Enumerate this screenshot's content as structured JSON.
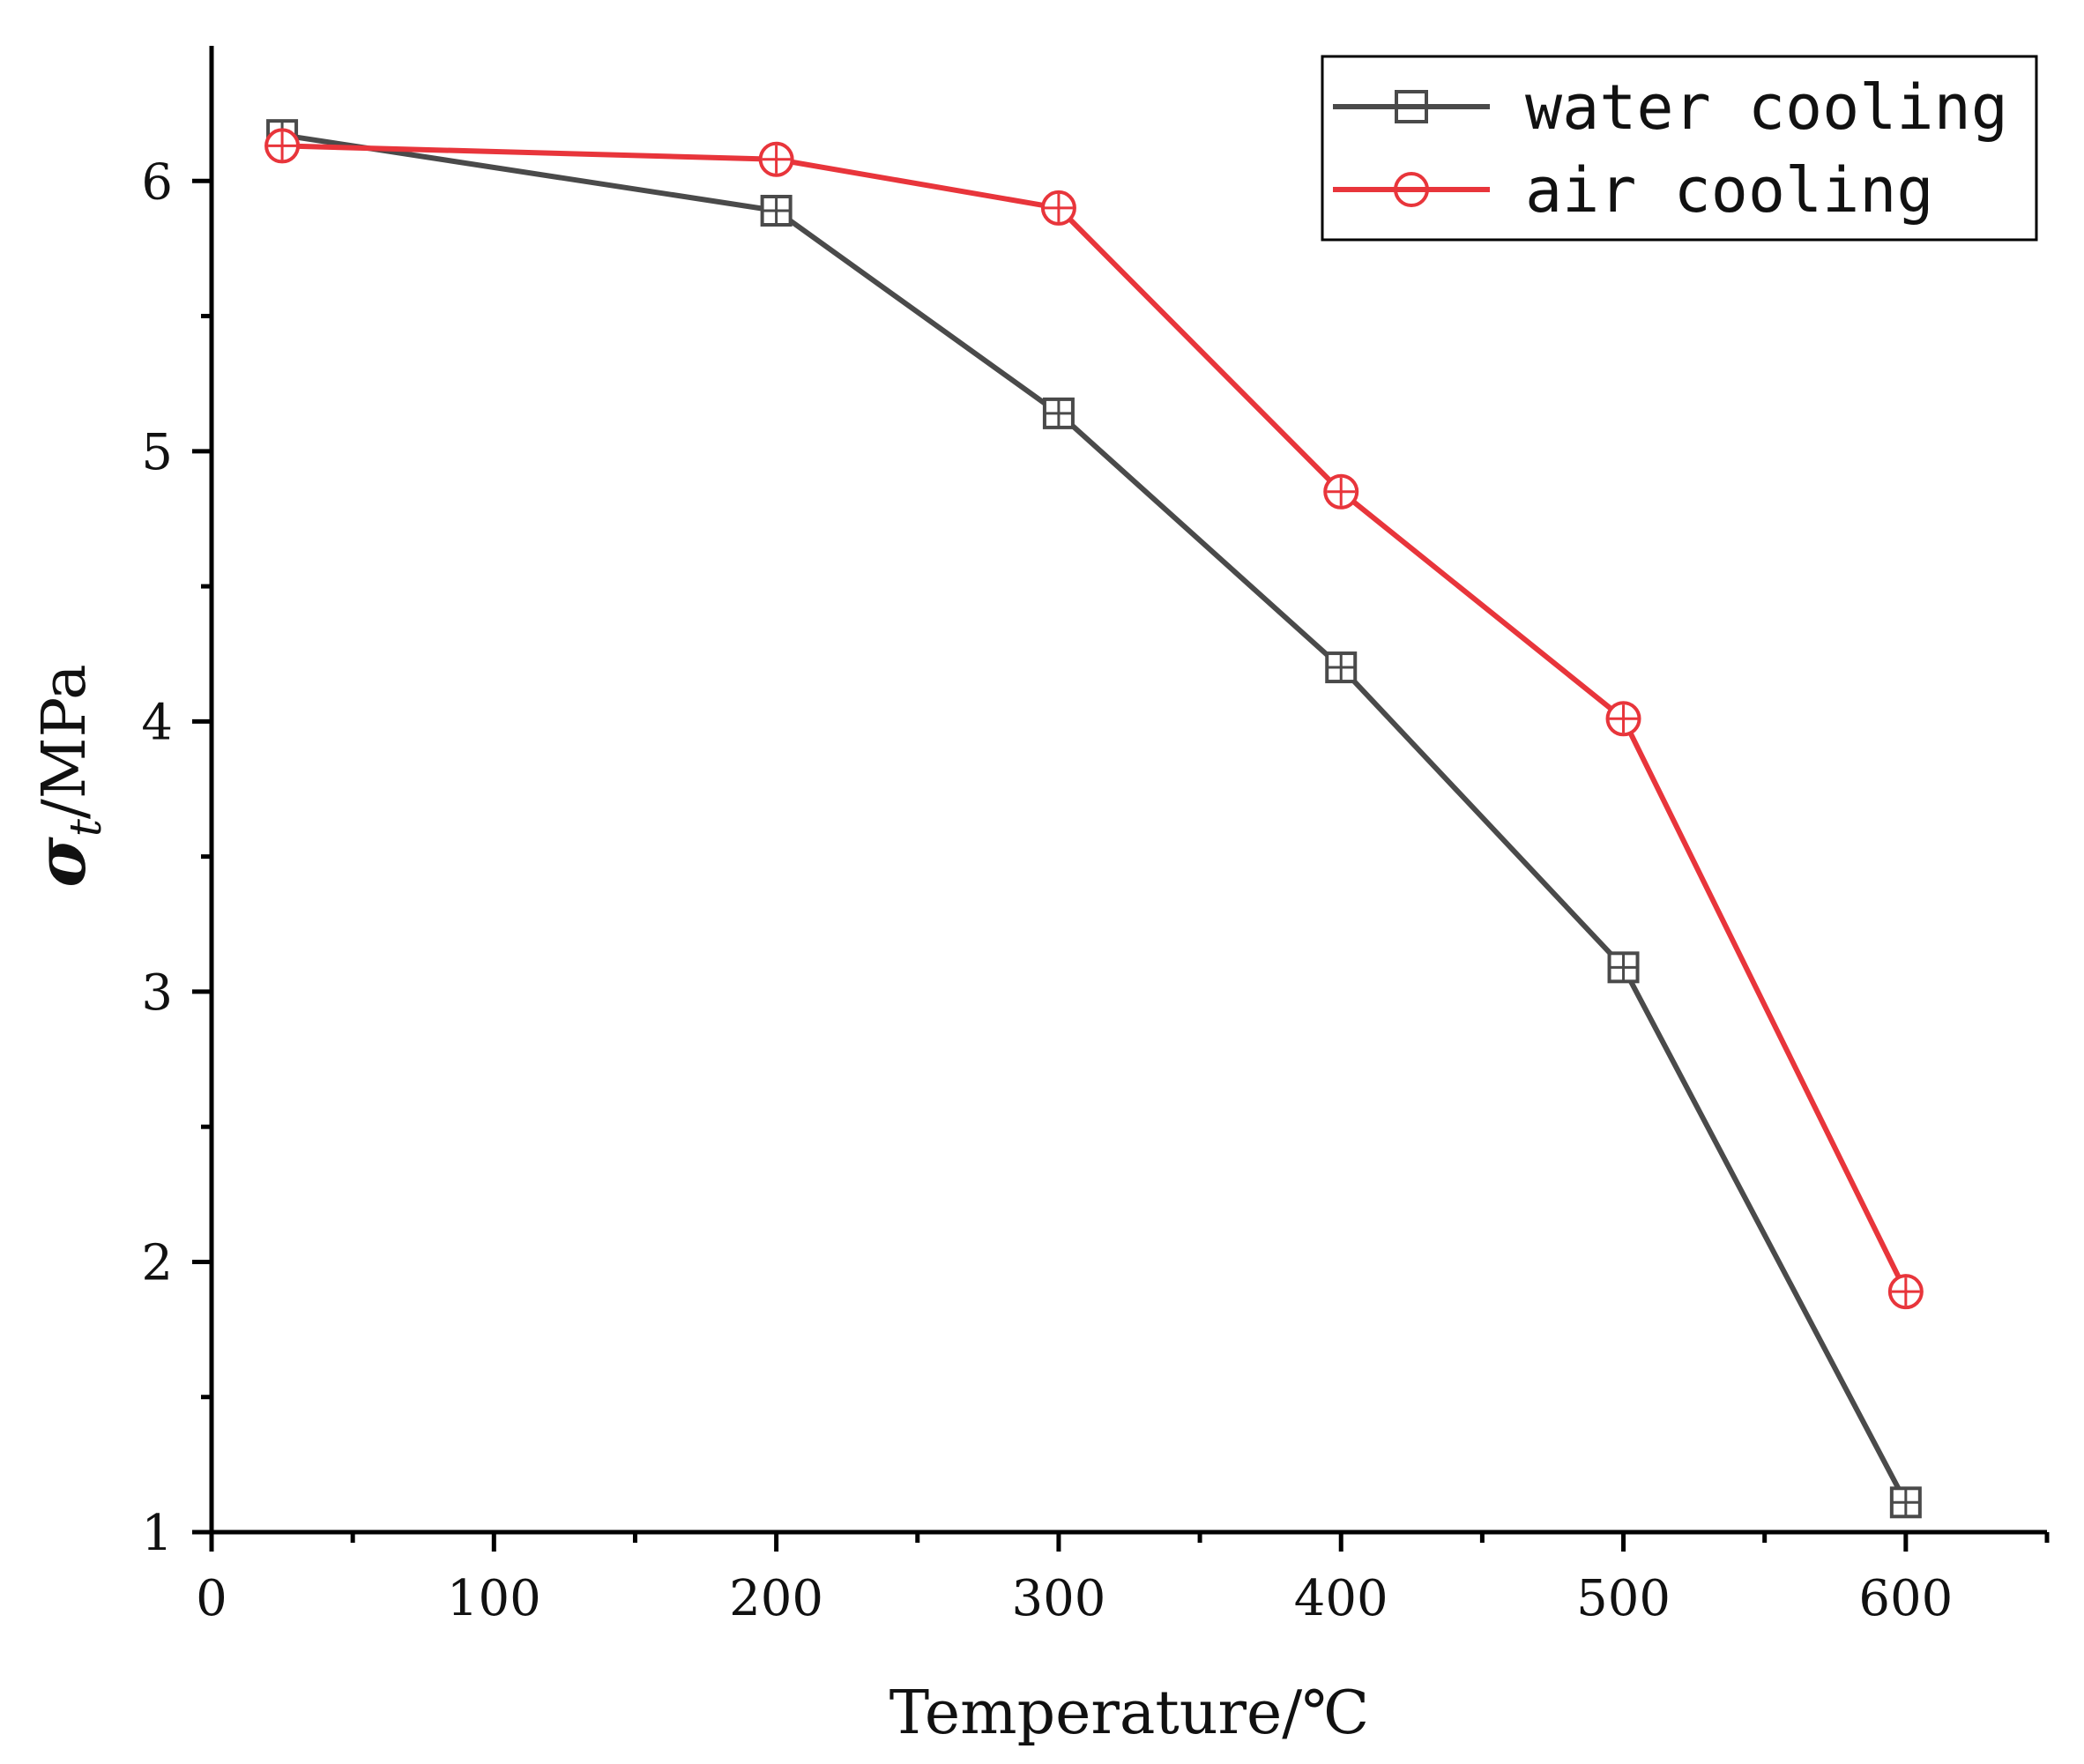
{
  "chart_data": {
    "type": "line",
    "title": "",
    "xlabel": "Temperature/℃",
    "ylabel_symbol": "σ",
    "ylabel_subscript": "t",
    "ylabel_unit": "/MPa",
    "xlim": [
      0,
      650
    ],
    "ylim": [
      1,
      6.5
    ],
    "x_ticks": [
      0,
      100,
      200,
      300,
      400,
      500,
      600
    ],
    "x_tick_labels": [
      "0",
      "100",
      "200",
      "300",
      "400",
      "500",
      "600"
    ],
    "y_ticks": [
      1,
      2,
      3,
      4,
      5,
      6
    ],
    "y_tick_labels": [
      "1",
      "2",
      "3",
      "4",
      "5",
      "6"
    ],
    "x_minor_ticks": [
      50,
      150,
      250,
      350,
      450,
      550,
      650
    ],
    "y_minor_ticks": [
      1.5,
      2.5,
      3.5,
      4.5,
      5.5
    ],
    "legend_position": "top-right",
    "grid": false,
    "series": [
      {
        "name": "water cooling",
        "color": "#4a4a4a",
        "marker": "square",
        "x": [
          25,
          200,
          300,
          400,
          500,
          600
        ],
        "y": [
          6.17,
          5.89,
          5.14,
          4.2,
          3.09,
          1.11
        ]
      },
      {
        "name": "air cooling",
        "color": "#e8353b",
        "marker": "circle",
        "x": [
          25,
          200,
          300,
          400,
          500,
          600
        ],
        "y": [
          6.13,
          6.08,
          5.9,
          4.85,
          4.01,
          1.89
        ]
      }
    ]
  }
}
